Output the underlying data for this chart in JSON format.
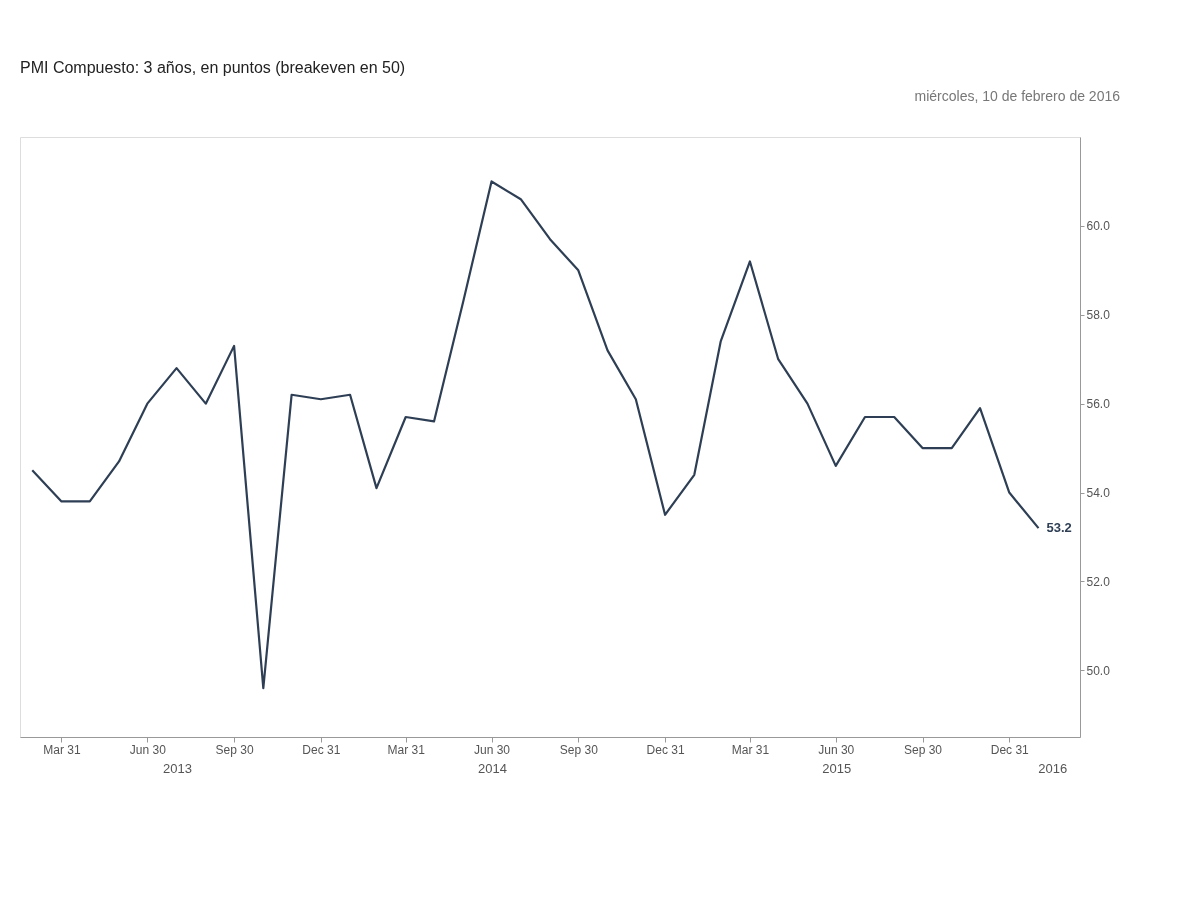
{
  "chart_data": {
    "type": "line",
    "title": "PMI Compuesto: 3 años, en puntos (breakeven en 50)",
    "annotations": [
      "miércoles, 10 de febrero de 2016"
    ],
    "x": [
      "2013-02-28",
      "2013-03-31",
      "2013-04-30",
      "2013-05-31",
      "2013-06-30",
      "2013-07-31",
      "2013-08-31",
      "2013-09-30",
      "2013-10-31",
      "2013-11-30",
      "2013-12-31",
      "2014-01-31",
      "2014-02-28",
      "2014-03-31",
      "2014-04-30",
      "2014-05-31",
      "2014-06-30",
      "2014-07-31",
      "2014-08-31",
      "2014-09-30",
      "2014-10-31",
      "2014-11-30",
      "2014-12-31",
      "2015-01-31",
      "2015-02-28",
      "2015-03-31",
      "2015-04-30",
      "2015-05-31",
      "2015-06-30",
      "2015-07-31",
      "2015-08-31",
      "2015-09-30",
      "2015-10-31",
      "2015-11-30",
      "2015-12-31",
      "2016-01-31"
    ],
    "series": [
      {
        "color": "#2e3f55",
        "values": [
          54.5,
          53.8,
          53.8,
          54.7,
          56.0,
          56.8,
          56.0,
          57.3,
          49.6,
          56.2,
          56.1,
          56.2,
          54.1,
          55.7,
          55.6,
          58.3,
          61.0,
          60.6,
          59.7,
          59.0,
          57.2,
          56.1,
          53.5,
          54.4,
          57.4,
          59.2,
          57.0,
          56.0,
          54.6,
          55.7,
          55.7,
          55.0,
          55.0,
          55.9,
          54.0,
          53.2
        ],
        "value_labels": [
          null,
          null,
          null,
          null,
          null,
          null,
          null,
          null,
          null,
          null,
          null,
          null,
          null,
          null,
          null,
          null,
          null,
          null,
          null,
          null,
          null,
          null,
          null,
          null,
          null,
          null,
          null,
          null,
          null,
          null,
          null,
          null,
          null,
          null,
          null,
          "53.2"
        ]
      }
    ],
    "xlim": [
      "2013-02-15",
      "2016-03-15"
    ],
    "xticks": [
      {
        "value": "2013-03-31",
        "label": "Mar 31"
      },
      {
        "value": "2013-06-30",
        "label": "Jun 30"
      },
      {
        "value": "2013-09-30",
        "label": "Sep 30"
      },
      {
        "value": "2013-12-31",
        "label": "Dec 31"
      },
      {
        "value": "2014-03-31",
        "label": "Mar 31"
      },
      {
        "value": "2014-06-30",
        "label": "Jun 30"
      },
      {
        "value": "2014-09-30",
        "label": "Sep 30"
      },
      {
        "value": "2014-12-31",
        "label": "Dec 31"
      },
      {
        "value": "2015-03-31",
        "label": "Mar 31"
      },
      {
        "value": "2015-06-30",
        "label": "Jun 30"
      },
      {
        "value": "2015-09-30",
        "label": "Sep 30"
      },
      {
        "value": "2015-12-31",
        "label": "Dec 31"
      }
    ],
    "x2lim": [
      "2013-02-15",
      "2016-03-15"
    ],
    "x2ticks": [
      {
        "value": "2013-08-01",
        "label": "2013"
      },
      {
        "value": "2014-07-01",
        "label": "2014"
      },
      {
        "value": "2015-07-01",
        "label": "2015"
      },
      {
        "value": "2016-02-15",
        "label": "2016"
      }
    ],
    "ylim": [
      48.5,
      62.0
    ],
    "yticks": [
      {
        "value": 50,
        "label": "50.0"
      },
      {
        "value": 52,
        "label": "52.0"
      },
      {
        "value": 54,
        "label": "54.0"
      },
      {
        "value": 56,
        "label": "56.0"
      },
      {
        "value": 58,
        "label": "58.0"
      },
      {
        "value": 60,
        "label": "60.0"
      }
    ],
    "grid": false,
    "marker": "none",
    "line_style": "solid"
  }
}
